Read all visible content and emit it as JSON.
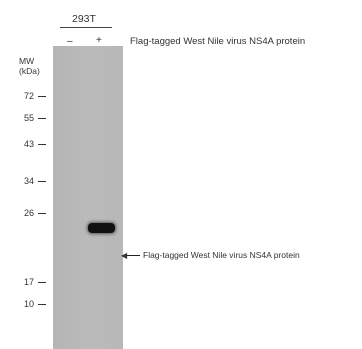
{
  "header": {
    "cell_line": "293T",
    "lanes": [
      "–",
      "+"
    ],
    "treatment_label": "Flag-tagged West Nile virus NS4A protein"
  },
  "mw": {
    "title_line1": "MW",
    "title_line2": "(kDa)",
    "markers": [
      "72",
      "55",
      "43",
      "34",
      "26",
      "17",
      "10"
    ]
  },
  "band_annotation": {
    "label": "Flag-tagged West Nile virus NS4A protein"
  }
}
